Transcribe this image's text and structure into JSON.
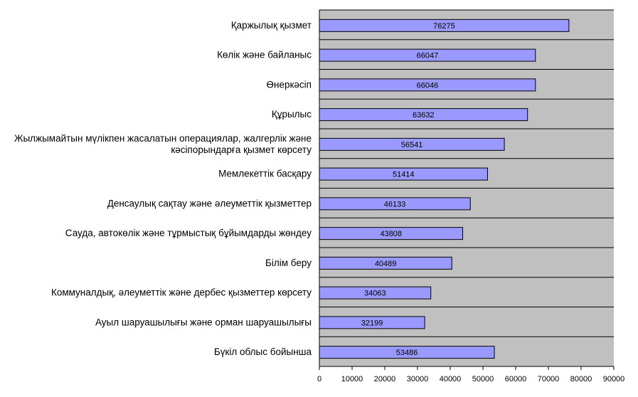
{
  "chart_data": {
    "type": "bar",
    "orientation": "horizontal",
    "categories": [
      [
        "Қаржылық қызмет"
      ],
      [
        "Көлік және байланыс"
      ],
      [
        "Өнеркәсіп"
      ],
      [
        "Құрылыс"
      ],
      [
        "Жылжымайтын мүлікпен жасалатын операциялар, жалгерлік және",
        "кәсіпорындарға қызмет көрсету"
      ],
      [
        "Мемлекеттік басқару"
      ],
      [
        "Денсаулық сақтау және әлеуметтік қызметтер"
      ],
      [
        "Сауда, автокөлік және тұрмыстық бұйымдарды жөндеу"
      ],
      [
        "Білім беру"
      ],
      [
        "Коммуналдық, әлеуметтік және дербес қызметтер көрсету"
      ],
      [
        "Ауыл шаруашылығы және орман шаруашылығы"
      ],
      [
        "Бүкіл облыс бойынша"
      ]
    ],
    "values": [
      76275,
      66047,
      66046,
      63632,
      56541,
      51414,
      46133,
      43808,
      40489,
      34063,
      32199,
      53486
    ],
    "xlim": [
      0,
      90000
    ],
    "ticks": [
      0,
      10000,
      20000,
      30000,
      40000,
      50000,
      60000,
      70000,
      80000,
      90000
    ],
    "data_labels": true,
    "grid": "horizontal lines between categories",
    "colors": {
      "bar_fill": "#9999ff",
      "bar_stroke": "#000000",
      "plot_background": "#c0c0c0"
    }
  }
}
